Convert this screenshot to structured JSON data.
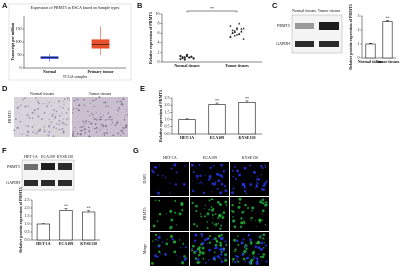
{
  "figure": {
    "panel_labels": [
      "A",
      "B",
      "C",
      "D",
      "E",
      "F",
      "G"
    ],
    "C": {
      "columns": [
        "Normal tissues",
        "Tumor tissues"
      ],
      "rows": [
        "PRMT5",
        "GAPDH"
      ]
    },
    "D": {
      "columns": [
        "Normal tissues",
        "Tumor tissues"
      ],
      "row": "PRMT5"
    },
    "F": {
      "columns": [
        "HET-1A",
        "ECA109",
        "KYSE150"
      ],
      "rows": [
        "PRMT5",
        "GAPDH"
      ]
    },
    "G": {
      "columns": [
        "HET-1A",
        "ECA109",
        "KYSE150"
      ],
      "rows": [
        "DAPI",
        "PRMT5",
        "Merge"
      ]
    }
  },
  "chart_data": [
    {
      "type": "box",
      "title": "Expression of PRMT5 in ESCA based on Sample types",
      "y_label": "Transcript per million",
      "x_label": "TCGA samples",
      "categories": [
        "Normal",
        "Primary tumor"
      ],
      "colors": [
        "#3b4fd8",
        "#e8502a"
      ],
      "min": [
        25,
        50
      ],
      "q1": [
        35,
        75
      ],
      "median": [
        40,
        90
      ],
      "q3": [
        45,
        110
      ],
      "max": [
        55,
        160
      ],
      "ylim": [
        0,
        200
      ],
      "yticks": [
        0,
        50,
        100,
        150
      ]
    },
    {
      "type": "dot",
      "y_label": "Relative expression of PRMT5",
      "categories": [
        "Normal tissues",
        "Tumor tissues"
      ],
      "values": [
        [
          0.6,
          0.8,
          1.0,
          1.2,
          0.9,
          1.1,
          0.7,
          1.3,
          1.0,
          0.5,
          1.4,
          0.9,
          1.1,
          0.8,
          1.2,
          1.0,
          0.6,
          1.5,
          0.9,
          1.1
        ],
        [
          5.2,
          6.0,
          6.5,
          7.1,
          5.8,
          6.3,
          4.8,
          7.5,
          6.1,
          5.5,
          6.8,
          5.9,
          6.4,
          7.0,
          5.3,
          6.6,
          6.2,
          5.7,
          8.0,
          6.9
        ]
      ],
      "markers": [
        "circle",
        "triangle"
      ],
      "color": "#222222",
      "annotation": "**",
      "ylim": [
        0,
        10
      ],
      "yticks": [
        0,
        2,
        4,
        6,
        8,
        10
      ]
    },
    {
      "type": "bar",
      "y_label": "Relative protein expression of PRMT5",
      "categories": [
        "Normal tissues",
        "Tumor tissues"
      ],
      "values": [
        1.0,
        2.6
      ],
      "errors": [
        0.05,
        0.08
      ],
      "annotations": [
        null,
        "**"
      ],
      "color": "#ffffff",
      "ylim": [
        0,
        3
      ],
      "yticks": [
        0,
        1,
        2,
        3
      ]
    },
    {
      "type": "bar",
      "y_label": "Relative expression of PRMT5",
      "categories": [
        "HET-1A",
        "ECA109",
        "KYSE150"
      ],
      "values": [
        1.0,
        2.05,
        2.2
      ],
      "errors": [
        0.05,
        0.1,
        0.1
      ],
      "annotations": [
        null,
        "**",
        "**"
      ],
      "color": "#ffffff",
      "ylim": [
        0,
        2.5
      ],
      "yticks": [
        {
          "value": 0,
          "label": "0.0"
        },
        0.5,
        {
          "value": 1,
          "label": "1.0"
        },
        1.5,
        {
          "value": 2,
          "label": "2.0"
        },
        2.5
      ]
    },
    {
      "type": "bar",
      "y_label": "Relative protein expression of PRMT5",
      "categories": [
        "HET-1A",
        "ECA109",
        "KYSE150"
      ],
      "values": [
        1.0,
        1.85,
        1.75
      ],
      "errors": [
        0.03,
        0.12,
        0.08
      ],
      "annotations": [
        null,
        "**",
        "**"
      ],
      "color": "#ffffff",
      "ylim": [
        0,
        2.5
      ],
      "yticks": [
        {
          "value": 0,
          "label": "0.0"
        },
        0.5,
        {
          "value": 1,
          "label": "1.0"
        },
        1.5,
        {
          "value": 2,
          "label": "2.0"
        },
        2.5
      ]
    }
  ]
}
